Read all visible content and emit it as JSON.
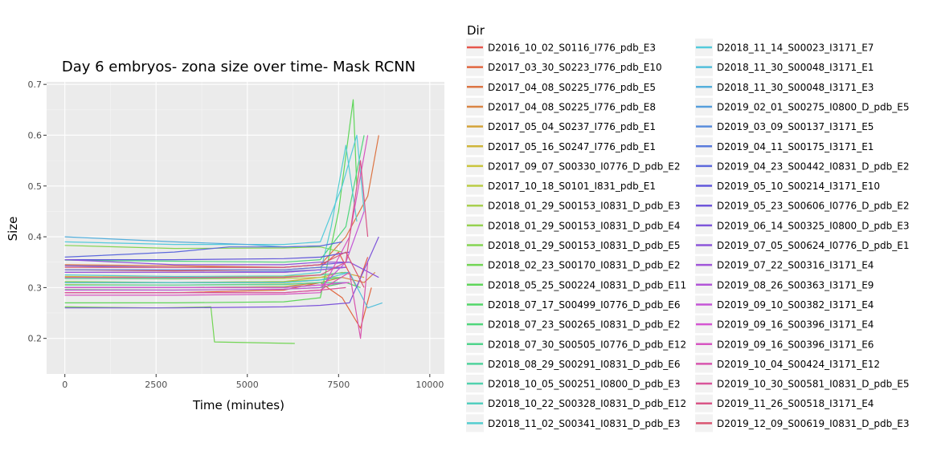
{
  "chart_data": {
    "type": "line",
    "title": "Day 6 embryos- zona size over time- Mask RCNN",
    "xlabel": "Time (minutes)",
    "ylabel": "Size",
    "xlim": [
      -500,
      10400
    ],
    "ylim": [
      0.13,
      0.705
    ],
    "x_ticks": [
      0,
      2500,
      5000,
      7500,
      10000
    ],
    "x_tick_labels": [
      "0",
      "2500",
      "5000",
      "7500",
      "10000"
    ],
    "y_ticks": [
      0.2,
      0.3,
      0.4,
      0.5,
      0.6,
      0.7
    ],
    "y_tick_labels": [
      "0.2",
      "0.3",
      "0.4",
      "0.5",
      "0.6",
      "0.7"
    ],
    "grid": true,
    "legend_title": "Dir",
    "legend_position": "right",
    "series": [
      {
        "name": "D2016_10_02_S0116_I776_pdb_E3",
        "color": "#e6564b",
        "x": [
          0,
          3000,
          6000,
          7000,
          7500,
          8000,
          8300
        ],
        "y": [
          0.335,
          0.333,
          0.335,
          0.34,
          0.37,
          0.3,
          0.36
        ]
      },
      {
        "name": "D2017_03_30_S0223_I776_pdb_E10",
        "color": "#e1663f",
        "x": [
          0,
          3000,
          6000,
          7000,
          7600,
          8100,
          8400
        ],
        "y": [
          0.29,
          0.29,
          0.295,
          0.31,
          0.28,
          0.22,
          0.3
        ]
      },
      {
        "name": "D2017_04_08_S0225_I776_pdb_E5",
        "color": "#dc7544",
        "x": [
          0,
          3000,
          6000,
          7000,
          7700,
          8300,
          8600
        ],
        "y": [
          0.345,
          0.343,
          0.34,
          0.345,
          0.4,
          0.48,
          0.6
        ]
      },
      {
        "name": "D2017_04_08_S0225_I776_pdb_E8",
        "color": "#d98444",
        "x": [
          0,
          3000,
          6000,
          7000,
          7600,
          8200,
          8500
        ],
        "y": [
          0.3,
          0.3,
          0.302,
          0.31,
          0.32,
          0.31,
          0.33
        ]
      },
      {
        "name": "D2017_05_04_S0237_I776_pdb_E1",
        "color": "#d4a33a",
        "x": [
          0,
          3000,
          6000,
          7000,
          7600,
          8200
        ],
        "y": [
          0.31,
          0.31,
          0.312,
          0.32,
          0.33,
          0.32
        ]
      },
      {
        "name": "D2017_05_16_S0247_I776_pdb_E1",
        "color": "#cfb53a",
        "x": [
          0,
          3000,
          6000,
          7000,
          7700
        ],
        "y": [
          0.322,
          0.32,
          0.322,
          0.325,
          0.33
        ]
      },
      {
        "name": "D2017_09_07_S00330_I0776_D_pdb_E2",
        "color": "#c9c43c",
        "x": [
          0,
          3000,
          6000,
          7000,
          7800
        ],
        "y": [
          0.306,
          0.305,
          0.307,
          0.31,
          0.31
        ]
      },
      {
        "name": "D2017_10_18_S0101_I831_pdb_E1",
        "color": "#b9cc44",
        "x": [
          0,
          3000,
          6000,
          7000,
          7600
        ],
        "y": [
          0.318,
          0.317,
          0.318,
          0.32,
          0.32
        ]
      },
      {
        "name": "D2018_01_29_S00153_I0831_D_pdb_E3",
        "color": "#a8cf4f",
        "x": [
          0,
          3000,
          6000,
          7000,
          7600
        ],
        "y": [
          0.3,
          0.3,
          0.302,
          0.305,
          0.31
        ]
      },
      {
        "name": "D2018_01_29_S00153_I0831_D_pdb_E4",
        "color": "#95d14f",
        "x": [
          0,
          3000,
          6000,
          7000,
          7600
        ],
        "y": [
          0.312,
          0.31,
          0.312,
          0.315,
          0.32
        ]
      },
      {
        "name": "D2018_01_29_S00153_I0831_D_pdb_E5",
        "color": "#84d452",
        "x": [
          0,
          3000,
          6000,
          7000,
          7600
        ],
        "y": [
          0.383,
          0.377,
          0.378,
          0.38,
          0.37
        ]
      },
      {
        "name": "D2018_02_23_S00170_I0831_D_pdb_E2",
        "color": "#72d554",
        "x": [
          0,
          2500,
          4000,
          4100,
          6300
        ],
        "y": [
          0.262,
          0.26,
          0.262,
          0.193,
          0.19
        ]
      },
      {
        "name": "D2018_05_25_S00224_I0831_D_pdb_E11",
        "color": "#5fd65a",
        "x": [
          0,
          3000,
          6000,
          7000,
          7500,
          7900,
          8000
        ],
        "y": [
          0.27,
          0.27,
          0.272,
          0.28,
          0.45,
          0.67,
          0.5
        ]
      },
      {
        "name": "D2018_07_17_S00499_I0776_D_pdb_E6",
        "color": "#52d669",
        "x": [
          0,
          3000,
          6000,
          7000,
          7700,
          8100
        ],
        "y": [
          0.296,
          0.295,
          0.297,
          0.3,
          0.31,
          0.3
        ]
      },
      {
        "name": "D2018_07_23_S00265_I0831_D_pdb_E2",
        "color": "#4fd67b",
        "x": [
          0,
          3000,
          6000,
          7000,
          7700,
          8200
        ],
        "y": [
          0.354,
          0.352,
          0.35,
          0.355,
          0.42,
          0.6
        ]
      },
      {
        "name": "D2018_07_30_S00505_I0776_D_pdb_E12",
        "color": "#4fd48c",
        "x": [
          0,
          3000,
          6000,
          7000,
          7600
        ],
        "y": [
          0.31,
          0.31,
          0.31,
          0.315,
          0.32
        ]
      },
      {
        "name": "D2018_08_29_S00291_I0831_D_pdb_E6",
        "color": "#50d39d",
        "x": [
          0,
          3000,
          6000,
          7000,
          7700
        ],
        "y": [
          0.305,
          0.305,
          0.306,
          0.31,
          0.31
        ]
      },
      {
        "name": "D2018_10_05_S00251_I0800_D_pdb_E3",
        "color": "#51d1ae",
        "x": [
          0,
          3000,
          6000,
          7000,
          7800
        ],
        "y": [
          0.318,
          0.318,
          0.32,
          0.325,
          0.33
        ]
      },
      {
        "name": "D2018_10_22_S00328_I0831_D_pdb_E12",
        "color": "#52cfbf",
        "x": [
          0,
          3000,
          6000,
          7000,
          7700
        ],
        "y": [
          0.3,
          0.3,
          0.3,
          0.305,
          0.31
        ]
      },
      {
        "name": "D2018_11_02_S00341_I0831_D_pdb_E3",
        "color": "#53cdcf",
        "x": [
          0,
          3000,
          6000,
          7000,
          7300,
          7700,
          8000
        ],
        "y": [
          0.325,
          0.322,
          0.323,
          0.33,
          0.42,
          0.58,
          0.43
        ]
      },
      {
        "name": "D2018_11_14_S00023_I3171_E7",
        "color": "#54cbdb",
        "x": [
          0,
          3000,
          6000,
          7000,
          7600,
          8000,
          8200
        ],
        "y": [
          0.39,
          0.385,
          0.385,
          0.39,
          0.5,
          0.6,
          0.45
        ]
      },
      {
        "name": "D2018_11_30_S00048_I3171_E1",
        "color": "#53bfdb",
        "x": [
          0,
          3000,
          6000,
          7000,
          7800,
          8300,
          8700
        ],
        "y": [
          0.31,
          0.31,
          0.31,
          0.315,
          0.33,
          0.26,
          0.27
        ]
      },
      {
        "name": "D2018_11_30_S00048_I3171_E3",
        "color": "#54afdc",
        "x": [
          0,
          3000,
          5000,
          6000,
          7000
        ],
        "y": [
          0.4,
          0.39,
          0.385,
          0.38,
          0.382
        ]
      },
      {
        "name": "D2019_02_01_S00275_I0800_D_pdb_E5",
        "color": "#569edc",
        "x": [
          0,
          3000,
          6000,
          7000,
          7700
        ],
        "y": [
          0.33,
          0.33,
          0.33,
          0.335,
          0.34
        ]
      },
      {
        "name": "D2019_03_09_S00137_I3171_E5",
        "color": "#588ddc",
        "x": [
          0,
          3000,
          6000,
          7000,
          7700
        ],
        "y": [
          0.33,
          0.33,
          0.332,
          0.335,
          0.34
        ]
      },
      {
        "name": "D2019_04_11_S00175_I3171_E1",
        "color": "#5a7bdc",
        "x": [
          0,
          3000,
          6000,
          7000,
          7700
        ],
        "y": [
          0.335,
          0.335,
          0.335,
          0.34,
          0.34
        ]
      },
      {
        "name": "D2019_04_23_S00442_I0831_D_pdb_E2",
        "color": "#5c69dc",
        "x": [
          0,
          3000,
          4500,
          6000,
          7000,
          7600
        ],
        "y": [
          0.36,
          0.37,
          0.38,
          0.38,
          0.382,
          0.39
        ]
      },
      {
        "name": "D2019_05_10_S00214_I3171_E10",
        "color": "#6158db",
        "x": [
          0,
          3000,
          6000,
          7000,
          7800
        ],
        "y": [
          0.355,
          0.355,
          0.357,
          0.36,
          0.37
        ]
      },
      {
        "name": "D2019_05_23_S00606_I0776_D_pdb_E2",
        "color": "#6e55da",
        "x": [
          0,
          3000,
          6000,
          7000,
          7800
        ],
        "y": [
          0.343,
          0.34,
          0.34,
          0.345,
          0.35
        ]
      },
      {
        "name": "D2019_06_14_S00325_I0800_D_pdb_E3",
        "color": "#7d55da",
        "x": [
          0,
          3000,
          6000,
          7000,
          7800,
          8600
        ],
        "y": [
          0.26,
          0.26,
          0.262,
          0.265,
          0.27,
          0.4
        ]
      },
      {
        "name": "D2019_07_05_S00624_I0776_D_pdb_E1",
        "color": "#8d55da",
        "x": [
          0,
          3000,
          6000,
          7000,
          7800,
          8600
        ],
        "y": [
          0.355,
          0.345,
          0.345,
          0.35,
          0.35,
          0.32
        ]
      },
      {
        "name": "D2019_07_22_S00316_I3171_E4",
        "color": "#a055d9",
        "x": [
          0,
          3000,
          6000,
          7000,
          7700
        ],
        "y": [
          0.33,
          0.33,
          0.33,
          0.335,
          0.34
        ]
      },
      {
        "name": "D2019_08_26_S00363_I3171_E9",
        "color": "#b255d8",
        "x": [
          0,
          3000,
          6000,
          7000,
          7700
        ],
        "y": [
          0.3,
          0.3,
          0.3,
          0.305,
          0.31
        ]
      },
      {
        "name": "D2019_09_10_S00382_I3171_E4",
        "color": "#c455d6",
        "x": [
          0,
          3000,
          6000,
          7000,
          7700,
          8200
        ],
        "y": [
          0.295,
          0.295,
          0.297,
          0.3,
          0.35,
          0.45
        ]
      },
      {
        "name": "D2019_09_16_S00396_I3171_E4",
        "color": "#d555d2",
        "x": [
          0,
          3000,
          6000,
          7000,
          7800
        ],
        "y": [
          0.3,
          0.3,
          0.3,
          0.305,
          0.31
        ]
      },
      {
        "name": "D2019_09_16_S00396_I3171_E6",
        "color": "#d755c1",
        "x": [
          0,
          3000,
          6000,
          7000,
          7800,
          8300
        ],
        "y": [
          0.285,
          0.285,
          0.287,
          0.29,
          0.4,
          0.6
        ]
      },
      {
        "name": "D2019_10_04_S00424_I3171_E12",
        "color": "#d855ae",
        "x": [
          0,
          3000,
          6000,
          7000,
          7800,
          8100,
          8300
        ],
        "y": [
          0.29,
          0.29,
          0.29,
          0.295,
          0.33,
          0.2,
          0.35
        ]
      },
      {
        "name": "D2019_10_30_S00581_I0831_D_pdb_E5",
        "color": "#d9559a",
        "x": [
          0,
          3000,
          6000,
          7000,
          7700
        ],
        "y": [
          0.29,
          0.29,
          0.29,
          0.295,
          0.3
        ]
      },
      {
        "name": "D2019_11_26_S00518_I3171_E4",
        "color": "#d95586",
        "x": [
          0,
          3000,
          6000,
          7000,
          7700,
          8100,
          8300
        ],
        "y": [
          0.32,
          0.32,
          0.32,
          0.325,
          0.35,
          0.55,
          0.4
        ]
      },
      {
        "name": "D2019_12_09_S00619_I0831_D_pdb_E3",
        "color": "#da5571",
        "x": [
          0,
          3000,
          6000,
          7000,
          7700,
          8200
        ],
        "y": [
          0.34,
          0.34,
          0.34,
          0.345,
          0.37,
          0.3
        ]
      }
    ]
  }
}
